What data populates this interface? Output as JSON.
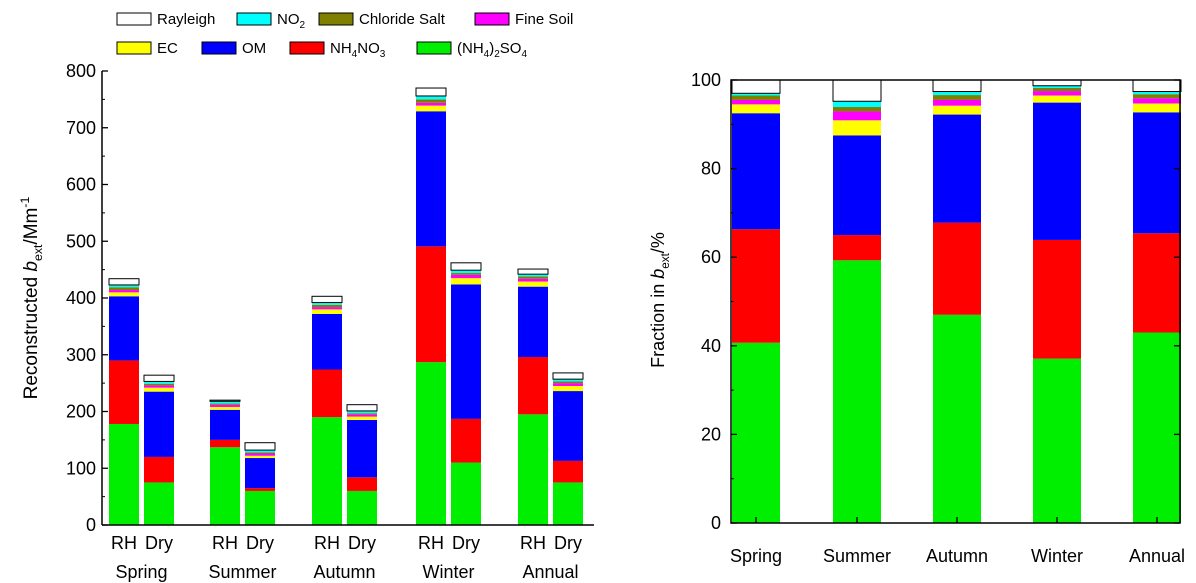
{
  "legend": {
    "row1": [
      {
        "label": "Rayleigh",
        "color": "#ffffff"
      },
      {
        "label": "NO",
        "sub": "2",
        "color": "#00ffff"
      },
      {
        "label": "Chloride Salt",
        "color": "#808000"
      },
      {
        "label": "Fine Soil",
        "color": "#ff00ff"
      }
    ],
    "row2": [
      {
        "label": "EC",
        "color": "#ffff00"
      },
      {
        "label": "OM",
        "color": "#0000ff"
      },
      {
        "label": "NH4NO3",
        "color": "#ff0000"
      },
      {
        "label": "(NH4)2SO4",
        "color": "#00ee00"
      }
    ]
  },
  "chart_data": [
    {
      "type": "bar",
      "stacked": true,
      "ylabel": "Reconstructed b_ext/Mm^-1",
      "ylabel_parts": {
        "pre": "Reconstructed ",
        "italic": "b",
        "sub": "ext",
        "post": "/Mm",
        "sup": "-1"
      },
      "ylim": [
        0,
        800
      ],
      "yticks": [
        0,
        100,
        200,
        300,
        400,
        500,
        600,
        700,
        800
      ],
      "groups": [
        "Spring",
        "Summer",
        "Autumn",
        "Winter",
        "Annual"
      ],
      "bar_labels": [
        "RH",
        "Dry"
      ],
      "components": [
        "(NH4)2SO4",
        "NH4NO3",
        "OM",
        "EC",
        "Fine Soil",
        "Chloride Salt",
        "NO2",
        "Rayleigh"
      ],
      "bars": [
        {
          "group": "Spring",
          "label": "RH",
          "values": [
            178,
            112,
            113,
            7,
            4,
            5,
            4,
            11
          ]
        },
        {
          "group": "Spring",
          "label": "Dry",
          "values": [
            75,
            45,
            115,
            7,
            4,
            3,
            4,
            11
          ]
        },
        {
          "group": "Summer",
          "label": "RH",
          "values": [
            137,
            13,
            53,
            5,
            4,
            2,
            4,
            2
          ]
        },
        {
          "group": "Summer",
          "label": "Dry",
          "values": [
            60,
            5,
            53,
            4,
            4,
            2,
            4,
            13
          ]
        },
        {
          "group": "Autumn",
          "label": "RH",
          "values": [
            190,
            84,
            98,
            8,
            4,
            4,
            4,
            11
          ]
        },
        {
          "group": "Autumn",
          "label": "Dry",
          "values": [
            60,
            24,
            101,
            6,
            4,
            2,
            4,
            11
          ]
        },
        {
          "group": "Winter",
          "label": "RH",
          "values": [
            287,
            204,
            238,
            10,
            5,
            6,
            6,
            14
          ]
        },
        {
          "group": "Winter",
          "label": "Dry",
          "values": [
            110,
            77,
            237,
            11,
            6,
            3,
            5,
            13
          ]
        },
        {
          "group": "Annual",
          "label": "RH",
          "values": [
            195,
            101,
            124,
            9,
            5,
            4,
            4,
            9
          ]
        },
        {
          "group": "Annual",
          "label": "Dry",
          "values": [
            75,
            38,
            123,
            9,
            5,
            3,
            4,
            11
          ]
        }
      ]
    },
    {
      "type": "bar",
      "stacked": true,
      "ylabel": "Fraction in b_ext/%",
      "ylabel_parts": {
        "pre": "Fraction in ",
        "italic": "b",
        "sub": "ext",
        "post": "/%"
      },
      "ylim": [
        0,
        100
      ],
      "yticks": [
        0,
        20,
        40,
        60,
        80,
        100
      ],
      "categories": [
        "Spring",
        "Summer",
        "Autumn",
        "Winter",
        "Annual"
      ],
      "components": [
        "(NH4)2SO4",
        "NH4NO3",
        "OM",
        "EC",
        "Fine Soil",
        "Chloride Salt",
        "NO2",
        "Rayleigh"
      ],
      "values": [
        [
          40.7,
          25.6,
          26.2,
          2.0,
          1.0,
          1.0,
          0.5,
          3.0
        ],
        [
          59.3,
          5.7,
          22.5,
          3.4,
          2.0,
          1.0,
          1.3,
          4.8
        ],
        [
          47.0,
          20.8,
          24.4,
          2.0,
          1.3,
          1.1,
          0.8,
          2.6
        ],
        [
          37.1,
          26.8,
          31.0,
          1.6,
          1.0,
          0.7,
          0.5,
          1.3
        ],
        [
          43.0,
          22.4,
          27.3,
          2.0,
          1.2,
          0.9,
          0.6,
          2.6
        ]
      ]
    }
  ]
}
